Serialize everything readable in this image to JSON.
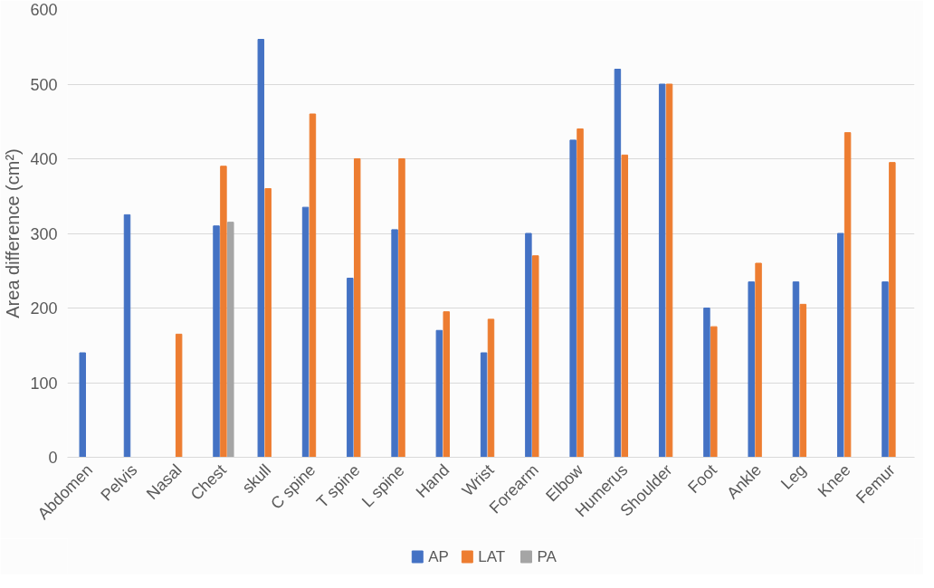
{
  "chart_data": {
    "type": "bar",
    "ylabel": "Area difference (cm²)",
    "categories": [
      "Abdomen",
      "Pelvis",
      "Nasal",
      "Chest",
      "skull",
      "C spine",
      "T spine",
      "L spine",
      "Hand",
      "Wrist",
      "Forearm",
      "Elbow",
      "Humerus",
      "Shoulder",
      "Foot",
      "Ankle",
      "Leg",
      "Knee",
      "Femur"
    ],
    "series": [
      {
        "name": "AP",
        "color": "#4472c4",
        "values": [
          140,
          325,
          null,
          310,
          560,
          335,
          240,
          305,
          170,
          140,
          300,
          425,
          520,
          500,
          200,
          235,
          235,
          300,
          235
        ]
      },
      {
        "name": "LAT",
        "color": "#ed7d31",
        "values": [
          null,
          null,
          165,
          390,
          360,
          460,
          400,
          400,
          195,
          185,
          270,
          440,
          405,
          500,
          175,
          260,
          205,
          435,
          395
        ]
      },
      {
        "name": "PA",
        "color": "#a5a5a5",
        "values": [
          null,
          null,
          null,
          315,
          null,
          null,
          null,
          null,
          null,
          null,
          null,
          null,
          null,
          null,
          null,
          null,
          null,
          null,
          null
        ]
      }
    ],
    "ylim": [
      0,
      600
    ],
    "yticks": [
      0,
      100,
      200,
      300,
      400,
      500,
      600
    ],
    "grid": "y",
    "legend": "bottom"
  }
}
